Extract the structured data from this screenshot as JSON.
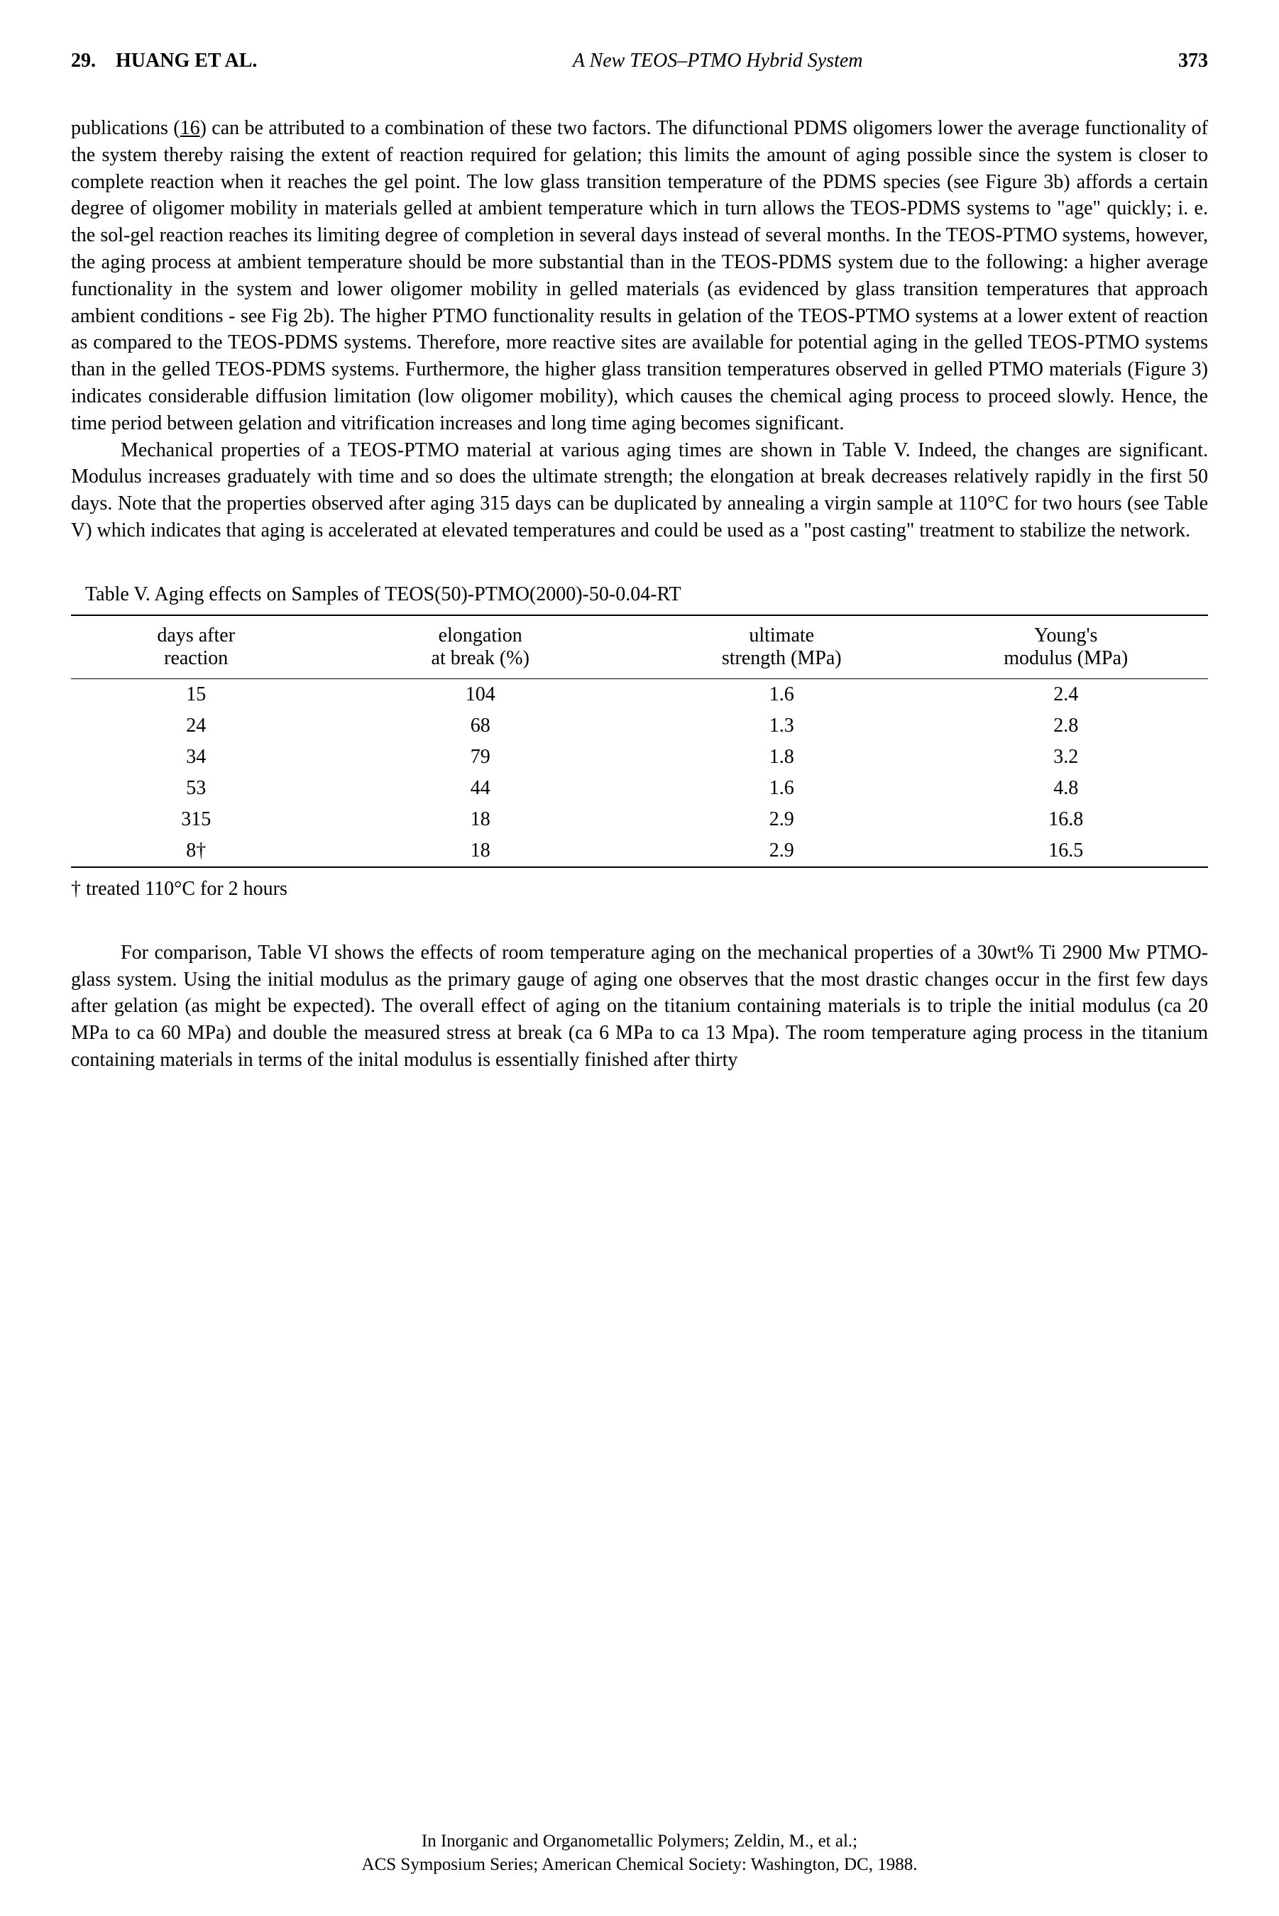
{
  "header": {
    "chapter": "29.",
    "authors": "HUANG ET AL.",
    "title": "A New TEOS–PTMO Hybrid System",
    "page": "373"
  },
  "paragraphs": {
    "p1_a": "publications (",
    "p1_ref": "16",
    "p1_b": ") can be attributed to a combination of these two factors. The difunctional PDMS oligomers lower the average functionality of the system thereby raising the extent of reaction required for gelation; this limits the amount of aging possible since the system is closer to complete reaction when it reaches the gel point. The low glass transition temperature of the PDMS species (see Figure 3b) affords a certain degree of oligomer mobility in materials gelled at ambient temperature which in turn allows the TEOS-PDMS systems to \"age\" quickly; i. e. the sol-gel reaction reaches its limiting degree of completion in several days instead of several months. In the TEOS-PTMO systems, however, the aging process at ambient temperature should be more substantial than in the TEOS-PDMS system due to the following: a higher average functionality in the system and lower oligomer mobility in gelled materials (as evidenced by glass transition temperatures that approach ambient conditions - see Fig 2b). The higher PTMO functionality results in gelation of the TEOS-PTMO systems at a lower extent of reaction as compared to the TEOS-PDMS systems. Therefore, more reactive sites are available for potential aging in the gelled TEOS-PTMO systems than in the gelled TEOS-PDMS systems. Furthermore, the higher glass transition temperatures observed in gelled PTMO materials (Figure 3) indicates considerable diffusion limitation (low oligomer mobility), which causes the chemical aging process to proceed slowly. Hence, the time period between gelation and vitrification increases and long time aging becomes significant.",
    "p2": "Mechanical properties of a TEOS-PTMO material at various aging times are shown in Table V. Indeed, the changes are significant. Modulus increases graduately with time and so does the ultimate strength; the elongation at break decreases relatively rapidly in the first 50 days. Note that the properties observed after aging 315 days can be duplicated by annealing a virgin sample at 110°C for two hours (see Table V) which indicates that aging is accelerated at elevated temperatures and could be used as a \"post casting\" treatment to stabilize the network.",
    "p3": "For comparison, Table VI shows the effects of room temperature aging on the mechanical properties of a 30wt% Ti 2900 Mw PTMO-glass system. Using the initial modulus as the primary gauge of aging one observes that the most drastic changes occur in the first few days after gelation (as might be expected). The overall effect of aging on the titanium containing materials is to triple the initial modulus (ca 20 MPa to ca 60 MPa) and double the measured stress at break (ca 6 MPa to ca 13 Mpa). The room temperature aging process in the titanium containing materials in terms of the inital modulus is essentially finished after thirty"
  },
  "table": {
    "caption": "Table V. Aging effects on Samples of TEOS(50)-PTMO(2000)-50-0.04-RT",
    "headers": {
      "c1a": "days after",
      "c1b": "reaction",
      "c2a": "elongation",
      "c2b": "at break (%)",
      "c3a": "ultimate",
      "c3b": "strength (MPa)",
      "c4a": "Young's",
      "c4b": "modulus (MPa)"
    },
    "rows": [
      {
        "c1": "15",
        "c2": "104",
        "c3": "1.6",
        "c4": "2.4"
      },
      {
        "c1": "24",
        "c2": "68",
        "c3": "1.3",
        "c4": "2.8"
      },
      {
        "c1": "34",
        "c2": "79",
        "c3": "1.8",
        "c4": "3.2"
      },
      {
        "c1": "53",
        "c2": "44",
        "c3": "1.6",
        "c4": "4.8"
      },
      {
        "c1": "315",
        "c2": "18",
        "c3": "2.9",
        "c4": "16.8"
      },
      {
        "c1": "8†",
        "c2": "18",
        "c3": "2.9",
        "c4": "16.5"
      }
    ],
    "footnote": "† treated 110°C for 2 hours"
  },
  "footer": {
    "line1": "In Inorganic and Organometallic Polymers; Zeldin, M., et al.;",
    "line2": "ACS Symposium Series; American Chemical Society: Washington, DC, 1988."
  }
}
